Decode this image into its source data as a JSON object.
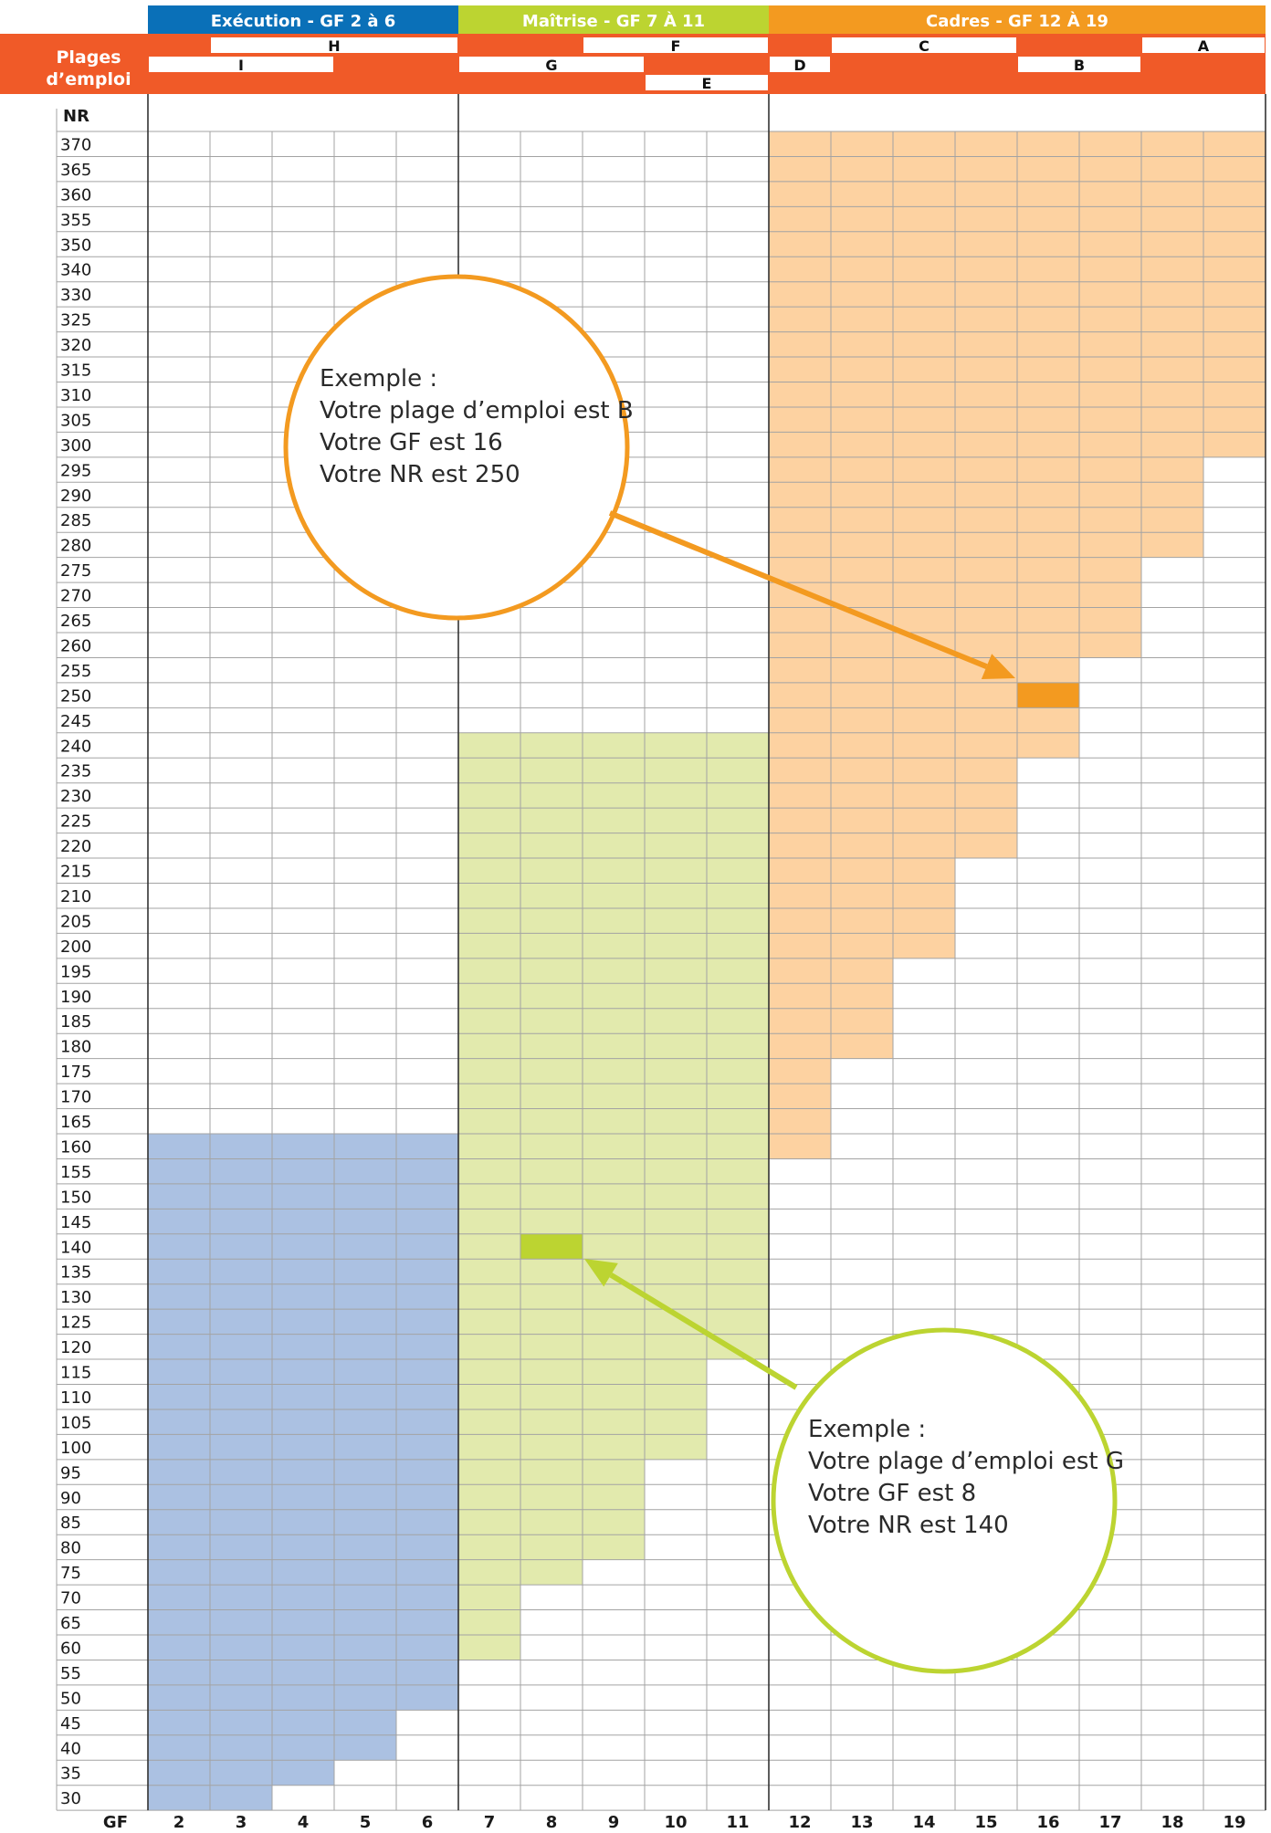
{
  "chart_data": {
    "type": "heatmap",
    "row_axis_label": "NR",
    "col_axis_label": "GF",
    "band_label_line1": "Plages",
    "band_label_line2": "d’emploi",
    "nr_levels": [
      370,
      365,
      360,
      355,
      350,
      340,
      330,
      325,
      320,
      315,
      310,
      305,
      300,
      295,
      290,
      285,
      280,
      275,
      270,
      265,
      260,
      255,
      250,
      245,
      240,
      235,
      230,
      225,
      220,
      215,
      210,
      205,
      200,
      195,
      190,
      185,
      180,
      175,
      170,
      165,
      160,
      155,
      150,
      145,
      140,
      135,
      130,
      125,
      120,
      115,
      110,
      105,
      100,
      95,
      90,
      85,
      80,
      75,
      70,
      65,
      60,
      55,
      50,
      45,
      40,
      35,
      30
    ],
    "gf_levels": [
      2,
      3,
      4,
      5,
      6,
      7,
      8,
      9,
      10,
      11,
      12,
      13,
      14,
      15,
      16,
      17,
      18,
      19
    ],
    "categories": [
      {
        "name": "Exécution - GF 2 à 6",
        "from_gf": 2,
        "to_gf": 6,
        "color": "#0a70b8",
        "fill": "#abc1e2"
      },
      {
        "name": "Maîtrise - GF 7 À 11",
        "from_gf": 7,
        "to_gf": 11,
        "color": "#bcd431",
        "fill": "#e2eaad"
      },
      {
        "name": "Cadres - GF 12 À 19",
        "from_gf": 12,
        "to_gf": 19,
        "color": "#f39a20",
        "fill": "#fdd2a1"
      }
    ],
    "nr_range_by_gf": [
      {
        "gf": 2,
        "min": 30,
        "max": 160
      },
      {
        "gf": 3,
        "min": 30,
        "max": 160
      },
      {
        "gf": 4,
        "min": 35,
        "max": 160
      },
      {
        "gf": 5,
        "min": 40,
        "max": 160
      },
      {
        "gf": 6,
        "min": 50,
        "max": 160
      },
      {
        "gf": 7,
        "min": 60,
        "max": 240
      },
      {
        "gf": 8,
        "min": 75,
        "max": 240
      },
      {
        "gf": 9,
        "min": 80,
        "max": 240
      },
      {
        "gf": 10,
        "min": 100,
        "max": 240
      },
      {
        "gf": 11,
        "min": 120,
        "max": 240
      },
      {
        "gf": 12,
        "min": 160,
        "max": 370
      },
      {
        "gf": 13,
        "min": 180,
        "max": 370
      },
      {
        "gf": 14,
        "min": 200,
        "max": 370
      },
      {
        "gf": 15,
        "min": 220,
        "max": 370
      },
      {
        "gf": 16,
        "min": 240,
        "max": 370
      },
      {
        "gf": 17,
        "min": 260,
        "max": 370
      },
      {
        "gf": 18,
        "min": 280,
        "max": 370
      },
      {
        "gf": 19,
        "min": 300,
        "max": 370
      }
    ],
    "plages_emploi": [
      {
        "name": "A",
        "from_gf": 18,
        "to_gf": 19
      },
      {
        "name": "B",
        "from_gf": 16,
        "to_gf": 17
      },
      {
        "name": "C",
        "from_gf": 13,
        "to_gf": 15
      },
      {
        "name": "D",
        "from_gf": 12,
        "to_gf": 12
      },
      {
        "name": "E",
        "from_gf": 10,
        "to_gf": 11
      },
      {
        "name": "F",
        "from_gf": 9,
        "to_gf": 11
      },
      {
        "name": "G",
        "from_gf": 7,
        "to_gf": 9
      },
      {
        "name": "H",
        "from_gf": 3,
        "to_gf": 6
      },
      {
        "name": "I",
        "from_gf": 2,
        "to_gf": 4
      }
    ],
    "highlights": [
      {
        "gf": 16,
        "nr": 250,
        "color": "#f39a20"
      },
      {
        "gf": 8,
        "nr": 140,
        "color": "#bcd431"
      }
    ],
    "callouts": [
      {
        "lines": [
          "Exemple :",
          "Votre plage d’emploi est B",
          "Votre GF est 16",
          "Votre NR est 250"
        ],
        "color": "#f39a20"
      },
      {
        "lines": [
          "Exemple :",
          "Votre plage d’emploi est G",
          "Votre GF est 8",
          "Votre NR est 140"
        ],
        "color": "#bcd431"
      }
    ],
    "colors": {
      "accent": "#f05a28",
      "grid": "#a3a3a3",
      "gridDark": "#333333",
      "header_text": "#ffffff"
    }
  }
}
